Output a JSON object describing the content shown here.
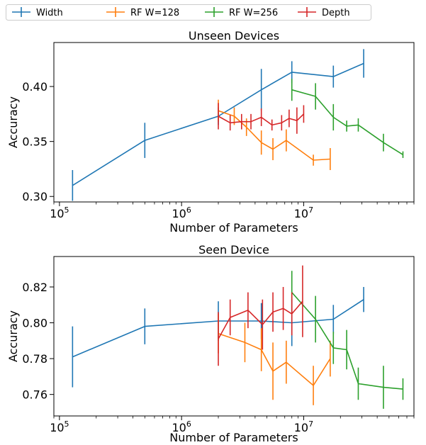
{
  "legend": {
    "placement": "top",
    "entries": [
      {
        "name": "Width",
        "color": "#1f77b4"
      },
      {
        "name": "RF W=128",
        "color": "#ff7f0e"
      },
      {
        "name": "RF W=256",
        "color": "#2ca02c"
      },
      {
        "name": "Depth",
        "color": "#d62728"
      }
    ]
  },
  "chart_data": [
    {
      "type": "line",
      "title": "Unseen Devices",
      "xlabel": "Number of Parameters",
      "ylabel": "Accuracy",
      "xscale": "log",
      "xlim": [
        90000,
        80000000
      ],
      "ylim": [
        0.295,
        0.44
      ],
      "xticks": [
        {
          "value": 100000,
          "base": "10",
          "exp": "5"
        },
        {
          "value": 1000000,
          "base": "10",
          "exp": "6"
        },
        {
          "value": 10000000,
          "base": "10",
          "exp": "7"
        }
      ],
      "yticks": [
        {
          "value": 0.3,
          "label": "0.30"
        },
        {
          "value": 0.35,
          "label": "0.35"
        },
        {
          "value": 0.4,
          "label": "0.40"
        }
      ],
      "series": [
        {
          "name": "Width",
          "color": "#1f77b4",
          "x": [
            128000,
            500000,
            2000000,
            4500000,
            8000000,
            17500000,
            31000000
          ],
          "y": [
            0.31,
            0.351,
            0.373,
            0.397,
            0.413,
            0.409,
            0.421
          ],
          "err": [
            0.014,
            0.016,
            0.008,
            0.019,
            0.01,
            0.01,
            0.013
          ]
        },
        {
          "name": "RF W=128",
          "color": "#ff7f0e",
          "x": [
            2000000,
            2700000,
            3400000,
            4500000,
            5600000,
            7200000,
            12000000,
            16500000
          ],
          "y": [
            0.378,
            0.373,
            0.363,
            0.349,
            0.343,
            0.351,
            0.333,
            0.334
          ],
          "err": [
            0.01,
            0.008,
            0.008,
            0.011,
            0.01,
            0.01,
            0.005,
            0.01
          ]
        },
        {
          "name": "RF W=256",
          "color": "#2ca02c",
          "x": [
            8000000,
            12500000,
            17500000,
            22500000,
            28000000,
            45000000,
            65000000
          ],
          "y": [
            0.397,
            0.391,
            0.372,
            0.364,
            0.365,
            0.349,
            0.338
          ],
          "err": [
            0.01,
            0.012,
            0.012,
            0.005,
            0.006,
            0.008,
            0.003
          ]
        },
        {
          "name": "Depth",
          "color": "#d62728",
          "x": [
            2000000,
            2500000,
            3100000,
            3700000,
            4500000,
            5500000,
            6600000,
            7600000,
            8800000,
            10000000
          ],
          "y": [
            0.373,
            0.367,
            0.368,
            0.368,
            0.372,
            0.365,
            0.367,
            0.371,
            0.369,
            0.375
          ],
          "err": [
            0.012,
            0.007,
            0.007,
            0.007,
            0.008,
            0.005,
            0.007,
            0.008,
            0.012,
            0.008
          ]
        }
      ]
    },
    {
      "type": "line",
      "title": "Seen Device",
      "xlabel": "Number of Parameters",
      "ylabel": "Accuracy",
      "xscale": "log",
      "xlim": [
        90000,
        80000000
      ],
      "ylim": [
        0.748,
        0.837
      ],
      "xticks": [
        {
          "value": 100000,
          "base": "10",
          "exp": "5"
        },
        {
          "value": 1000000,
          "base": "10",
          "exp": "6"
        },
        {
          "value": 10000000,
          "base": "10",
          "exp": "7"
        }
      ],
      "yticks": [
        {
          "value": 0.76,
          "label": "0.76"
        },
        {
          "value": 0.78,
          "label": "0.78"
        },
        {
          "value": 0.8,
          "label": "0.80"
        },
        {
          "value": 0.82,
          "label": "0.82"
        }
      ],
      "series": [
        {
          "name": "Width",
          "color": "#1f77b4",
          "x": [
            128000,
            500000,
            2000000,
            4500000,
            8000000,
            17500000,
            31000000
          ],
          "y": [
            0.781,
            0.798,
            0.801,
            0.801,
            0.8,
            0.802,
            0.813
          ],
          "err": [
            0.017,
            0.01,
            0.011,
            0.01,
            0.013,
            0.008,
            0.007
          ]
        },
        {
          "name": "RF W=128",
          "color": "#ff7f0e",
          "x": [
            2000000,
            3300000,
            4500000,
            5600000,
            7200000,
            12000000,
            16500000
          ],
          "y": [
            0.794,
            0.789,
            0.785,
            0.773,
            0.778,
            0.765,
            0.78
          ],
          "err": [
            0.011,
            0.011,
            0.012,
            0.016,
            0.012,
            0.011,
            0.01
          ]
        },
        {
          "name": "RF W=256",
          "color": "#2ca02c",
          "x": [
            8000000,
            12500000,
            17500000,
            22500000,
            28000000,
            45000000,
            65000000
          ],
          "y": [
            0.817,
            0.802,
            0.786,
            0.785,
            0.766,
            0.764,
            0.763
          ],
          "err": [
            0.012,
            0.013,
            0.009,
            0.011,
            0.009,
            0.012,
            0.006
          ]
        },
        {
          "name": "Depth",
          "color": "#d62728",
          "x": [
            2000000,
            2500000,
            3500000,
            4600000,
            5600000,
            6800000,
            8000000,
            9800000
          ],
          "y": [
            0.791,
            0.803,
            0.807,
            0.799,
            0.806,
            0.808,
            0.805,
            0.812
          ],
          "err": [
            0.015,
            0.01,
            0.01,
            0.014,
            0.011,
            0.012,
            0.012,
            0.02
          ]
        }
      ]
    }
  ]
}
